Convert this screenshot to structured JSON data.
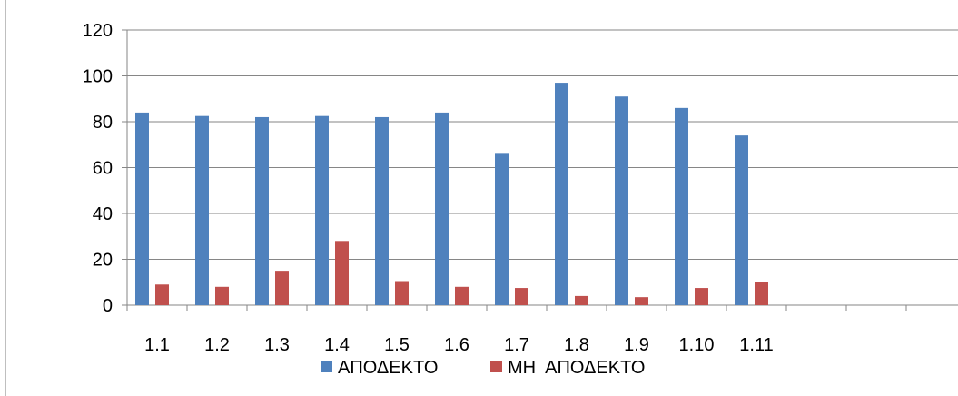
{
  "chart_data": {
    "type": "bar",
    "categories": [
      "1.1",
      "1.2",
      "1.3",
      "1.4",
      "1.5",
      "1.6",
      "1.7",
      "1.8",
      "1.9",
      "1.10",
      "1.11",
      "",
      "",
      ""
    ],
    "series": [
      {
        "name": "ΑΠΟΔΕΚΤΟ",
        "color": "#4f81bd",
        "values": [
          84,
          82.5,
          82,
          82.5,
          82,
          84,
          66,
          97,
          91,
          86,
          74,
          null,
          null,
          null
        ]
      },
      {
        "name": "ΜΗ  ΑΠΟΔΕΚΤΟ",
        "color": "#c0504d",
        "values": [
          9,
          8,
          15,
          28,
          10.5,
          8,
          7.5,
          4,
          3.5,
          7.5,
          10,
          null,
          null,
          null
        ]
      }
    ],
    "y_ticks": [
      "0",
      "20",
      "40",
      "60",
      "80",
      "100",
      "120"
    ],
    "ylim": [
      0,
      120
    ],
    "grid": true,
    "legend_position": "bottom",
    "title": "",
    "xlabel": "",
    "ylabel": ""
  }
}
